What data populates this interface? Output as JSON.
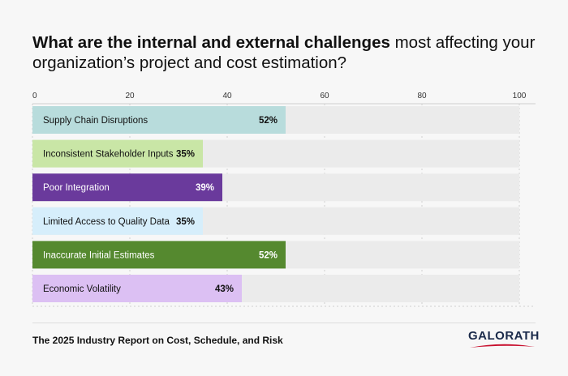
{
  "title": {
    "bold": "What are the internal and external challenges",
    "regular": " most affecting your organization’s project and cost estimation?"
  },
  "footer": {
    "source": "The 2025 Industry Report on Cost, Schedule, and Risk",
    "logo": "GALORATH"
  },
  "chart_data": {
    "type": "bar",
    "orientation": "horizontal",
    "xlim": [
      0,
      100
    ],
    "ticks": [
      0,
      20,
      40,
      60,
      80,
      100
    ],
    "grid": true,
    "categories": [
      "Supply Chain Disruptions",
      "Inconsistent Stakeholder Inputs",
      "Poor Integration",
      "Limited Access to Quality Data",
      "Inaccurate Initial Estimates",
      "Economic Volatility"
    ],
    "values": [
      52,
      35,
      39,
      35,
      52,
      43
    ],
    "value_labels": [
      "52%",
      "35%",
      "39%",
      "35%",
      "52%",
      "43%"
    ],
    "colors": [
      "#b8dcdc",
      "#c9e6a6",
      "#6a3a9c",
      "#d6eefb",
      "#55892f",
      "#dcc0f3"
    ],
    "text_colors": [
      "#111111",
      "#111111",
      "#ffffff",
      "#111111",
      "#ffffff",
      "#111111"
    ],
    "track_color": "#ebebeb"
  }
}
